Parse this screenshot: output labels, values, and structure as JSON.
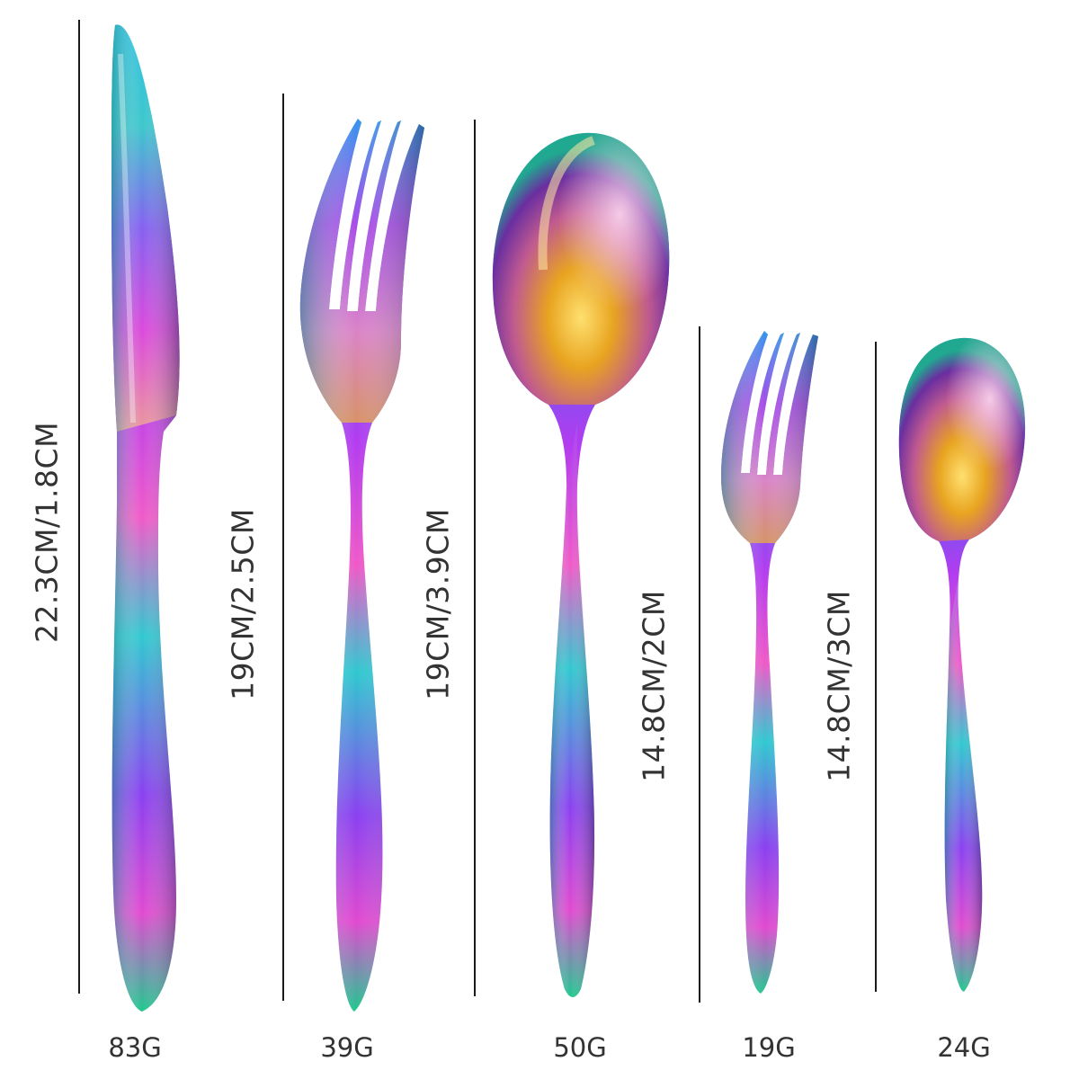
{
  "items": [
    {
      "name": "knife",
      "dimension": "22.3CM/1.8CM",
      "weight": "83G"
    },
    {
      "name": "fork",
      "dimension": "19CM/2.5CM",
      "weight": "39G"
    },
    {
      "name": "spoon",
      "dimension": "19CM/3.9CM",
      "weight": "50G"
    },
    {
      "name": "small-fork",
      "dimension": "14.8CM/2CM",
      "weight": "19G"
    },
    {
      "name": "teaspoon",
      "dimension": "14.8CM/3CM",
      "weight": "24G"
    }
  ],
  "colors": {
    "background": "#ffffff",
    "rule": "#1a1a1a",
    "text": "#333333",
    "finish": [
      "#1ec8d8",
      "#3a6cf0",
      "#b23cf0",
      "#f05ac8",
      "#f0a040",
      "#f0c020",
      "#30c890"
    ]
  }
}
